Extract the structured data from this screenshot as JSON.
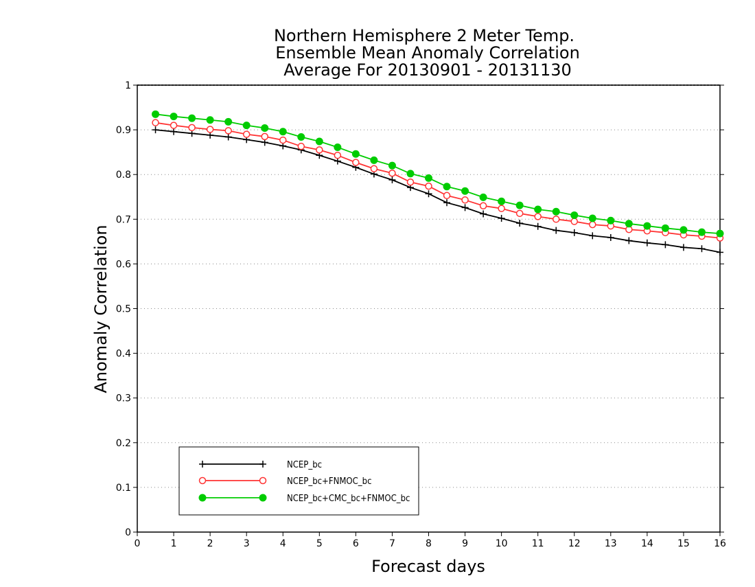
{
  "chart_data": {
    "type": "line",
    "title_lines": [
      "Northern Hemisphere 2 Meter Temp.",
      "Ensemble Mean Anomaly Correlation",
      "Average For 20130901 - 20131130"
    ],
    "xlabel": "Forecast days",
    "ylabel": "Anomaly Correlation",
    "xlim": [
      0,
      16
    ],
    "ylim": [
      0,
      1
    ],
    "xticks": [
      "0",
      "1",
      "2",
      "3",
      "4",
      "5",
      "6",
      "7",
      "8",
      "9",
      "10",
      "11",
      "12",
      "13",
      "14",
      "15",
      "16"
    ],
    "yticks": [
      "0",
      "0.1",
      "0.2",
      "0.3",
      "0.4",
      "0.5",
      "0.6",
      "0.7",
      "0.8",
      "0.9",
      "1"
    ],
    "grid": "horizontal dotted",
    "legend_placement": "bottom-left",
    "x": [
      0.5,
      1,
      1.5,
      2,
      2.5,
      3,
      3.5,
      4,
      4.5,
      5,
      5.5,
      6,
      6.5,
      7,
      7.5,
      8,
      8.5,
      9,
      9.5,
      10,
      10.5,
      11,
      11.5,
      12,
      12.5,
      13,
      13.5,
      14,
      14.5,
      15,
      15.5,
      16
    ],
    "series": [
      {
        "name": "NCEP_bc",
        "color": "#000000",
        "marker": "plus",
        "values": [
          0.9,
          0.896,
          0.892,
          0.888,
          0.884,
          0.878,
          0.872,
          0.864,
          0.855,
          0.843,
          0.83,
          0.816,
          0.801,
          0.788,
          0.771,
          0.757,
          0.737,
          0.726,
          0.712,
          0.702,
          0.691,
          0.684,
          0.675,
          0.67,
          0.663,
          0.659,
          0.652,
          0.647,
          0.643,
          0.637,
          0.634,
          0.626
        ]
      },
      {
        "name": "NCEP_bc+FNMOC_bc",
        "color": "#ff3333",
        "marker": "open-circle",
        "values": [
          0.916,
          0.91,
          0.905,
          0.901,
          0.898,
          0.89,
          0.885,
          0.877,
          0.863,
          0.855,
          0.843,
          0.827,
          0.813,
          0.803,
          0.783,
          0.774,
          0.753,
          0.743,
          0.73,
          0.724,
          0.713,
          0.706,
          0.7,
          0.695,
          0.688,
          0.685,
          0.677,
          0.674,
          0.67,
          0.665,
          0.662,
          0.658
        ]
      },
      {
        "name": "NCEP_bc+CMC_bc+FNMOC_bc",
        "color": "#00cc00",
        "marker": "filled-circle",
        "values": [
          0.935,
          0.93,
          0.926,
          0.922,
          0.918,
          0.91,
          0.904,
          0.896,
          0.884,
          0.874,
          0.861,
          0.846,
          0.832,
          0.82,
          0.802,
          0.792,
          0.773,
          0.763,
          0.749,
          0.74,
          0.731,
          0.722,
          0.717,
          0.709,
          0.702,
          0.697,
          0.69,
          0.685,
          0.68,
          0.676,
          0.671,
          0.668
        ]
      }
    ]
  }
}
